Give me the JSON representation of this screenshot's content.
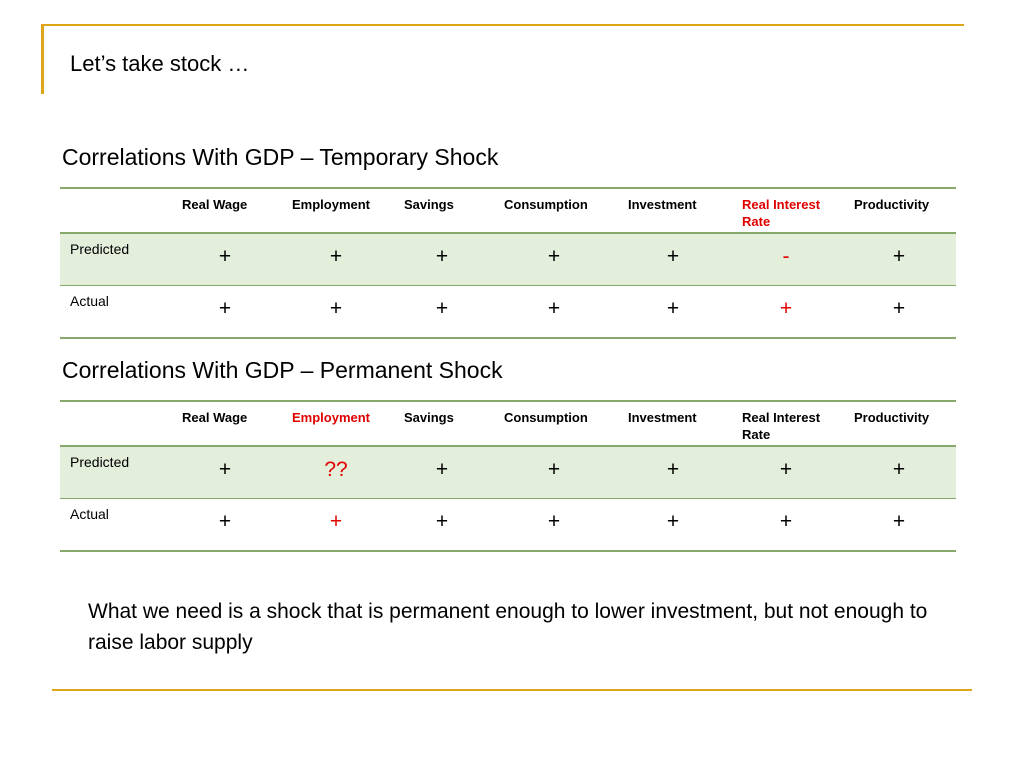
{
  "slide": {
    "title": "Let’s take stock …",
    "note": "What we need is a shock that is permanent enough to lower investment, but not enough to raise labor supply"
  },
  "colors": {
    "accent": "#DDA619",
    "table_rule": "#86A96B",
    "row_shade": "#E3EEDB",
    "highlight": "#E00000"
  },
  "temporary": {
    "title": "Correlations With GDP – Temporary Shock",
    "headers": [
      "Real Wage",
      "Employment",
      "Savings",
      "Consumption",
      "Investment",
      "Real Interest Rate",
      "Productivity"
    ],
    "highlight_headers": [
      "Real Interest Rate"
    ],
    "rows": [
      {
        "label": "Predicted",
        "values": [
          "+",
          "+",
          "+",
          "+",
          "+",
          "-",
          "+"
        ],
        "highlight": [
          5
        ]
      },
      {
        "label": "Actual",
        "values": [
          "+",
          "+",
          "+",
          "+",
          "+",
          "+",
          "+"
        ],
        "highlight": [
          5
        ]
      }
    ]
  },
  "permanent": {
    "title": "Correlations With GDP – Permanent Shock",
    "headers": [
      "Real Wage",
      "Employment",
      "Savings",
      "Consumption",
      "Investment",
      "Real Interest Rate",
      "Productivity"
    ],
    "highlight_headers": [
      "Employment"
    ],
    "rows": [
      {
        "label": "Predicted",
        "values": [
          "+",
          "??",
          "+",
          "+",
          "+",
          "+",
          "+"
        ],
        "highlight": [
          1
        ]
      },
      {
        "label": "Actual",
        "values": [
          "+",
          "+",
          "+",
          "+",
          "+",
          "+",
          "+"
        ],
        "highlight": [
          1
        ]
      }
    ]
  }
}
